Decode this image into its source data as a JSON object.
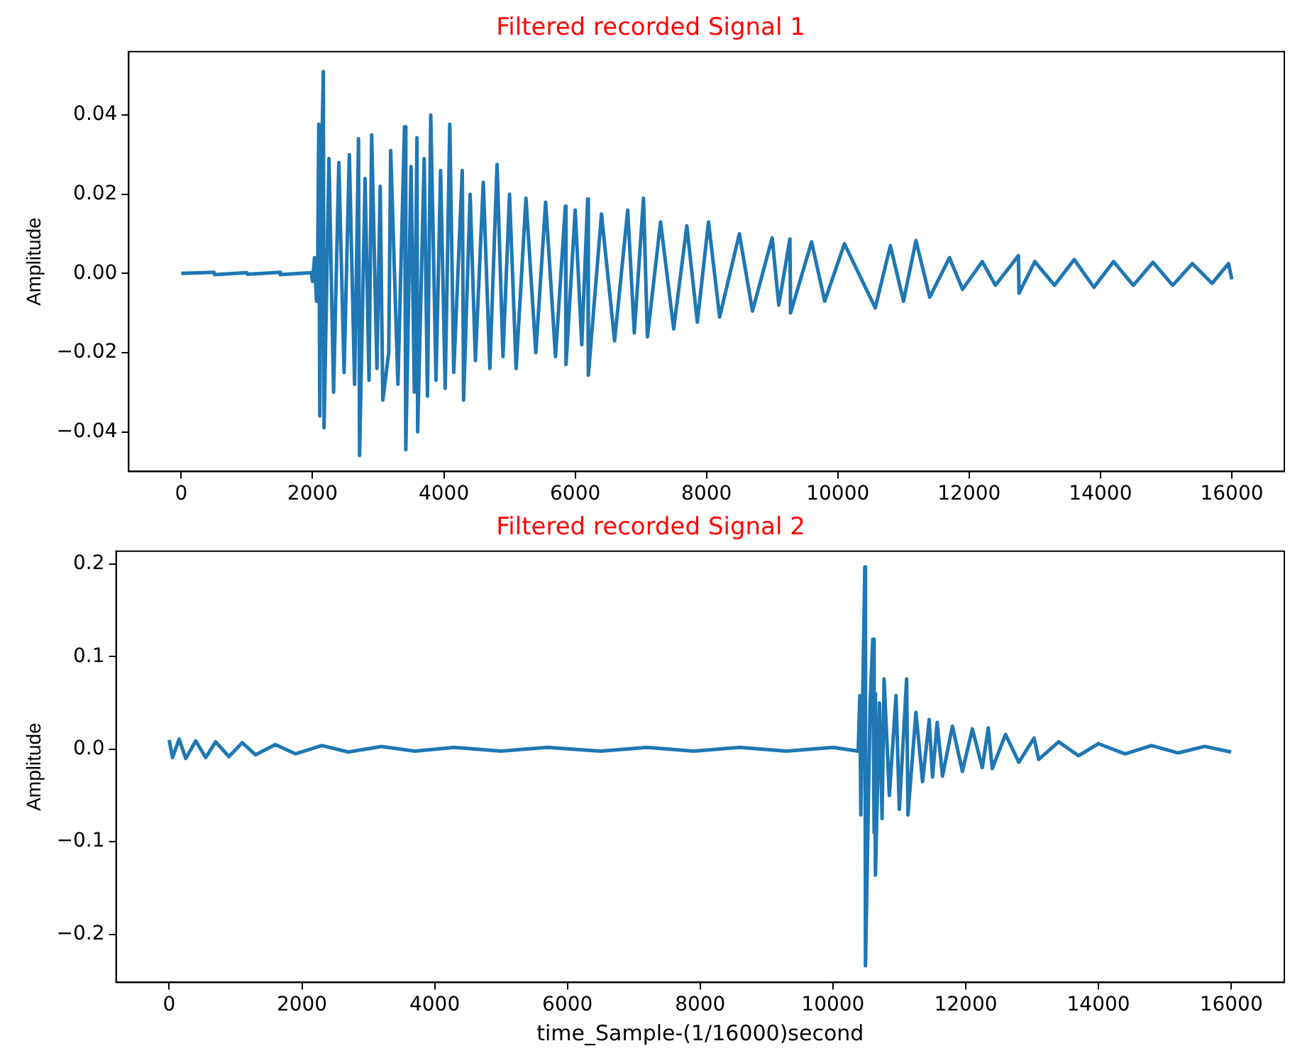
{
  "chart_data": [
    {
      "type": "line",
      "title": "Filtered recorded Signal 1",
      "ylabel": "Amplitude",
      "x": [
        0,
        500,
        510,
        1000,
        1010,
        1500,
        1510,
        1980,
        2000,
        2030,
        2060,
        2080,
        2095,
        2110,
        2140,
        2164,
        2175,
        2250,
        2320,
        2400,
        2480,
        2560,
        2640,
        2700,
        2716,
        2800,
        2860,
        2900,
        2980,
        3030,
        3070,
        3160,
        3190,
        3300,
        3400,
        3420,
        3500,
        3550,
        3590,
        3600,
        3700,
        3750,
        3800,
        3880,
        3950,
        4020,
        4090,
        4150,
        4280,
        4300,
        4400,
        4480,
        4600,
        4700,
        4810,
        4900,
        5000,
        5100,
        5250,
        5400,
        5550,
        5700,
        5850,
        5860,
        6000,
        6100,
        6190,
        6200,
        6400,
        6600,
        6800,
        6900,
        7040,
        7100,
        7300,
        7500,
        7700,
        7860,
        8030,
        8200,
        8500,
        8700,
        9000,
        9100,
        9270,
        9280,
        9600,
        9800,
        10100,
        10570,
        10800,
        11000,
        11190,
        11400,
        11700,
        11900,
        12200,
        12400,
        12750,
        12760,
        13000,
        13300,
        13600,
        13900,
        14200,
        14500,
        14800,
        15100,
        15400,
        15700,
        15950,
        16000
      ],
      "series": [
        {
          "color": "#1f77b4",
          "values": [
            0,
            0.0003,
            -0.0003,
            0.0002,
            -0.0002,
            0.0003,
            -0.0003,
            0.0002,
            -0.002,
            0.004,
            -0.007,
            0.008,
            0.0377,
            -0.036,
            0.03,
            0.051,
            -0.039,
            0.029,
            -0.03,
            0.028,
            -0.025,
            0.03,
            -0.028,
            0.034,
            -0.046,
            0.024,
            -0.027,
            0.035,
            -0.024,
            0.022,
            -0.032,
            -0.02,
            0.031,
            -0.028,
            0.037,
            -0.0445,
            0.027,
            -0.03,
            0.0343,
            -0.04,
            0.029,
            -0.031,
            0.04,
            -0.027,
            0.026,
            -0.029,
            0.0377,
            -0.025,
            0.026,
            -0.032,
            0.02,
            -0.022,
            0.023,
            -0.024,
            0.0275,
            -0.021,
            0.02,
            -0.024,
            0.019,
            -0.02,
            0.018,
            -0.021,
            0.017,
            -0.023,
            0.016,
            -0.018,
            0.0188,
            -0.0257,
            0.015,
            -0.017,
            0.016,
            -0.015,
            0.019,
            -0.016,
            0.013,
            -0.014,
            0.012,
            -0.0123,
            0.013,
            -0.011,
            0.01,
            -0.0095,
            0.009,
            -0.008,
            0.0087,
            -0.01,
            0.008,
            -0.007,
            0.0075,
            -0.0087,
            0.007,
            -0.007,
            0.0083,
            -0.006,
            0.004,
            -0.004,
            0.003,
            -0.003,
            0.0045,
            -0.005,
            0.003,
            -0.003,
            0.0035,
            -0.0035,
            0.003,
            -0.003,
            0.0028,
            -0.003,
            0.0025,
            -0.0025,
            0.0025,
            -0.0015
          ]
        }
      ],
      "xlim": [
        -800,
        16800
      ],
      "ylim": [
        -0.05,
        0.056
      ],
      "xticks": [
        0,
        2000,
        4000,
        6000,
        8000,
        10000,
        12000,
        14000,
        16000
      ],
      "yticks": [
        {
          "value": -0.04,
          "label": "−0.04"
        },
        {
          "value": -0.02,
          "label": "−0.02"
        },
        {
          "value": 0,
          "label": "0.00"
        },
        {
          "value": 0.02,
          "label": "0.02"
        },
        {
          "value": 0.04,
          "label": "0.04"
        }
      ]
    },
    {
      "type": "line",
      "title": "Filtered recorded Signal 2",
      "ylabel": "Amplitude",
      "xlabel": "time_Sample-(1/16000)second",
      "x": [
        0,
        50,
        150,
        250,
        400,
        550,
        700,
        900,
        1100,
        1300,
        1600,
        1900,
        2300,
        2700,
        3200,
        3700,
        4300,
        5000,
        5700,
        6500,
        7200,
        7900,
        8600,
        9300,
        10000,
        10380,
        10405,
        10420,
        10480,
        10490,
        10560,
        10600,
        10620,
        10630,
        10640,
        10700,
        10740,
        10770,
        10850,
        10950,
        11000,
        11110,
        11130,
        11250,
        11350,
        11450,
        11500,
        11570,
        11650,
        11800,
        11950,
        12100,
        12250,
        12340,
        12400,
        12600,
        12800,
        13030,
        13100,
        13400,
        13700,
        14000,
        14400,
        14800,
        15200,
        15600,
        16000
      ],
      "series": [
        {
          "color": "#1f77b4",
          "values": [
            0.01,
            -0.009,
            0.011,
            -0.01,
            0.009,
            -0.009,
            0.008,
            -0.008,
            0.007,
            -0.006,
            0.005,
            -0.005,
            0.004,
            -0.003,
            0.003,
            -0.002,
            0.002,
            -0.002,
            0.002,
            -0.002,
            0.002,
            -0.002,
            0.002,
            -0.002,
            0.002,
            -0.002,
            0.058,
            -0.071,
            0.197,
            -0.234,
            0.05,
            0.119,
            -0.09,
            0.06,
            -0.136,
            0.05,
            -0.075,
            0.076,
            -0.05,
            0.058,
            -0.065,
            0.076,
            -0.071,
            0.04,
            -0.035,
            0.032,
            -0.03,
            0.029,
            -0.029,
            0.025,
            -0.024,
            0.022,
            -0.02,
            0.023,
            -0.021,
            0.016,
            -0.014,
            0.012,
            -0.011,
            0.008,
            -0.007,
            0.006,
            -0.005,
            0.004,
            -0.004,
            0.003,
            -0.003
          ]
        }
      ],
      "xlim": [
        -800,
        16800
      ],
      "ylim": [
        -0.252,
        0.214
      ],
      "xticks": [
        0,
        2000,
        4000,
        6000,
        8000,
        10000,
        12000,
        14000,
        16000
      ],
      "yticks": [
        {
          "value": -0.2,
          "label": "−0.2"
        },
        {
          "value": -0.1,
          "label": "−0.1"
        },
        {
          "value": 0,
          "label": "0.0"
        },
        {
          "value": 0.1,
          "label": "0.1"
        },
        {
          "value": 0.2,
          "label": "0.2"
        }
      ]
    }
  ]
}
